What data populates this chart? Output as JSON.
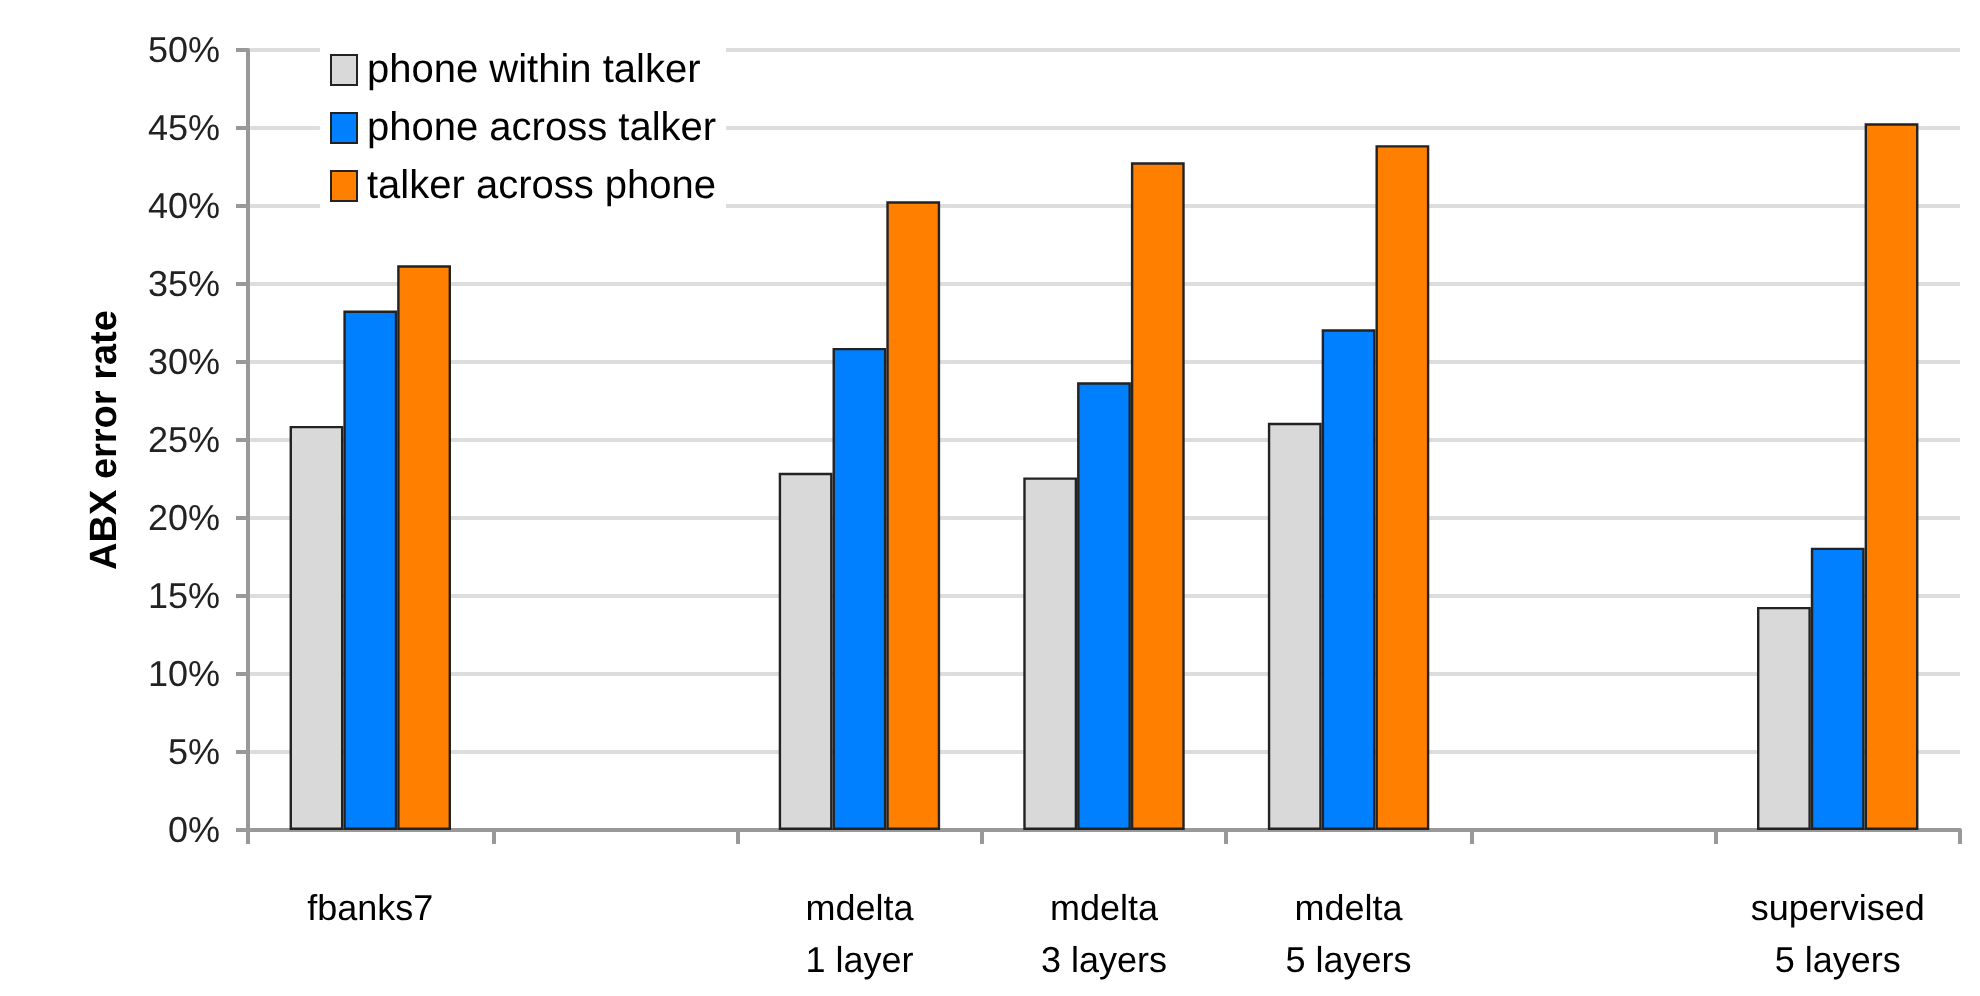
{
  "chart_data": {
    "type": "bar",
    "ylabel": "ABX error rate",
    "categories": [
      "fbanks7",
      null,
      "mdelta\n1 layer",
      "mdelta\n3 layers",
      "mdelta\n5 layers",
      null,
      "supervised\n5 layers"
    ],
    "series": [
      {
        "name": "phone within talker",
        "color": "#d9d9d9",
        "values": [
          25.9,
          null,
          22.9,
          22.6,
          26.1,
          null,
          14.3
        ]
      },
      {
        "name": "phone across talker",
        "color": "#0080ff",
        "values": [
          33.3,
          null,
          30.9,
          28.7,
          32.1,
          null,
          18.1
        ]
      },
      {
        "name": "talker across phone",
        "color": "#ff8000",
        "values": [
          36.2,
          null,
          40.3,
          42.8,
          43.9,
          null,
          45.3
        ]
      }
    ],
    "ylim": [
      0,
      50
    ],
    "yticks": [
      {
        "value": 0,
        "label": "0%"
      },
      {
        "value": 5,
        "label": "5%"
      },
      {
        "value": 10,
        "label": "10%"
      },
      {
        "value": 15,
        "label": "15%"
      },
      {
        "value": 20,
        "label": "20%"
      },
      {
        "value": 25,
        "label": "25%"
      },
      {
        "value": 30,
        "label": "30%"
      },
      {
        "value": 35,
        "label": "35%"
      },
      {
        "value": 40,
        "label": "40%"
      },
      {
        "value": 45,
        "label": "45%"
      },
      {
        "value": 50,
        "label": "50%"
      }
    ],
    "grid": "y",
    "legend": "top left"
  }
}
